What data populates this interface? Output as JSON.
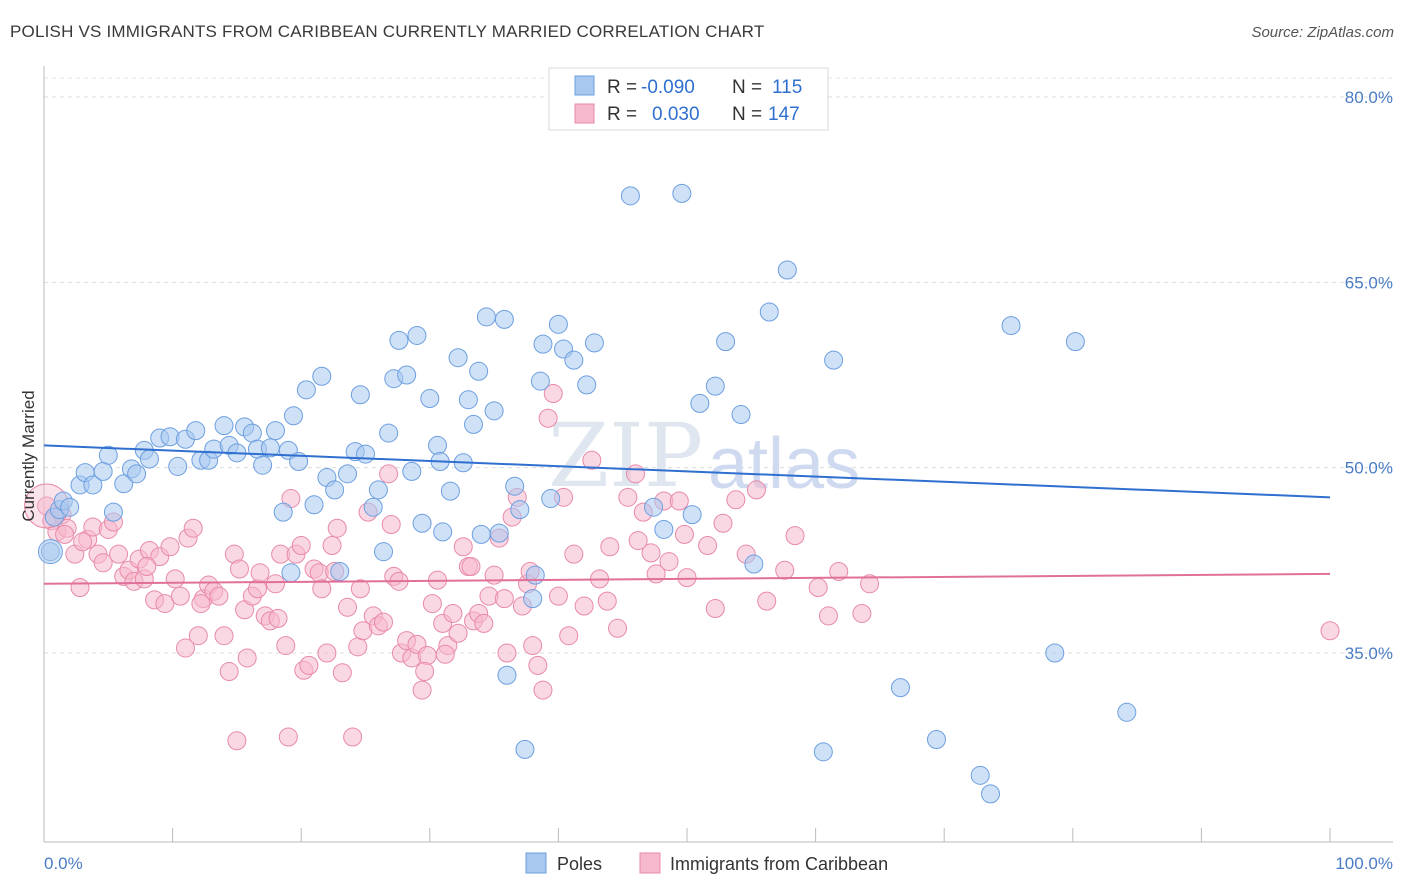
{
  "header": {
    "title": "POLISH VS IMMIGRANTS FROM CARIBBEAN CURRENTLY MARRIED CORRELATION CHART",
    "source": "Source: ZipAtlas.com"
  },
  "watermark": {
    "zip": "ZIP",
    "atlas": "atlas"
  },
  "legend": {
    "rows": [
      {
        "r_label": "R =",
        "r_value": "-0.090",
        "n_label": "N =",
        "n_value": "115",
        "color": "#a8c8f0"
      },
      {
        "r_label": "R =",
        "r_value": "0.030",
        "n_label": "N =",
        "n_value": "147",
        "color": "#f5b8cc"
      }
    ]
  },
  "bottom_legend": {
    "series1": "Poles",
    "series2": "Immigrants from Caribbean"
  },
  "chart_data": {
    "type": "scatter",
    "title": "POLISH VS IMMIGRANTS FROM CARIBBEAN CURRENTLY MARRIED CORRELATION CHART",
    "xlabel": "",
    "ylabel": "Currently Married",
    "xlim": [
      0,
      100
    ],
    "ylim": [
      20,
      83
    ],
    "x_tick_labels": [
      "0.0%",
      "100.0%"
    ],
    "y_ticks": [
      35,
      50,
      65,
      80
    ],
    "y_tick_labels": [
      "35.0%",
      "50.0%",
      "65.0%",
      "80.0%"
    ],
    "grid": true,
    "legend_position": "top-center",
    "series": [
      {
        "name": "Poles",
        "color": "#a8c8f0",
        "stroke": "#6d9fe0",
        "trend": {
          "x": [
            0,
            100
          ],
          "y": [
            51.8,
            47.6
          ],
          "color": "#2f6fd0"
        },
        "points": [
          [
            0.5,
            43.2
          ],
          [
            0.8,
            46.0
          ],
          [
            1.2,
            46.6
          ],
          [
            1.5,
            47.3
          ],
          [
            2.0,
            46.8
          ],
          [
            2.8,
            48.6
          ],
          [
            3.2,
            49.6
          ],
          [
            3.8,
            48.6
          ],
          [
            4.6,
            49.7
          ],
          [
            5.0,
            51.0
          ],
          [
            5.4,
            46.4
          ],
          [
            6.2,
            48.7
          ],
          [
            6.8,
            49.9
          ],
          [
            7.2,
            49.5
          ],
          [
            7.8,
            51.4
          ],
          [
            8.2,
            50.7
          ],
          [
            9.0,
            52.4
          ],
          [
            9.8,
            52.5
          ],
          [
            10.4,
            50.1
          ],
          [
            11.0,
            52.3
          ],
          [
            11.8,
            53.0
          ],
          [
            12.2,
            50.6
          ],
          [
            12.8,
            50.6
          ],
          [
            13.2,
            51.5
          ],
          [
            14.0,
            53.4
          ],
          [
            14.4,
            51.8
          ],
          [
            15.0,
            51.2
          ],
          [
            15.6,
            53.3
          ],
          [
            16.2,
            52.8
          ],
          [
            16.6,
            51.5
          ],
          [
            17.0,
            50.2
          ],
          [
            17.6,
            51.6
          ],
          [
            18.0,
            53.0
          ],
          [
            18.6,
            46.4
          ],
          [
            19.0,
            51.4
          ],
          [
            19.2,
            41.5
          ],
          [
            19.4,
            54.2
          ],
          [
            19.8,
            50.5
          ],
          [
            20.4,
            56.3
          ],
          [
            21.0,
            47.0
          ],
          [
            21.6,
            57.4
          ],
          [
            22.0,
            49.2
          ],
          [
            22.6,
            48.2
          ],
          [
            23.0,
            41.6
          ],
          [
            23.6,
            49.5
          ],
          [
            24.2,
            51.3
          ],
          [
            24.6,
            55.9
          ],
          [
            25.0,
            51.1
          ],
          [
            25.6,
            46.8
          ],
          [
            26.0,
            48.2
          ],
          [
            26.4,
            43.2
          ],
          [
            26.8,
            52.8
          ],
          [
            27.2,
            57.2
          ],
          [
            27.6,
            60.3
          ],
          [
            28.2,
            57.5
          ],
          [
            28.6,
            49.7
          ],
          [
            29.0,
            60.7
          ],
          [
            29.4,
            45.5
          ],
          [
            30.0,
            55.6
          ],
          [
            30.6,
            51.8
          ],
          [
            30.8,
            50.5
          ],
          [
            31.0,
            44.8
          ],
          [
            31.6,
            48.1
          ],
          [
            32.2,
            58.9
          ],
          [
            32.6,
            50.4
          ],
          [
            33.0,
            55.5
          ],
          [
            33.4,
            53.5
          ],
          [
            33.8,
            57.8
          ],
          [
            34.0,
            44.6
          ],
          [
            34.4,
            62.2
          ],
          [
            35.0,
            54.6
          ],
          [
            35.4,
            44.7
          ],
          [
            35.8,
            62.0
          ],
          [
            36.0,
            33.2
          ],
          [
            36.6,
            48.5
          ],
          [
            37.0,
            46.6
          ],
          [
            37.4,
            27.2
          ],
          [
            38.0,
            39.4
          ],
          [
            38.2,
            41.3
          ],
          [
            38.6,
            57.0
          ],
          [
            38.8,
            60.0
          ],
          [
            39.4,
            47.5
          ],
          [
            40.0,
            61.6
          ],
          [
            40.4,
            59.6
          ],
          [
            41.2,
            58.7
          ],
          [
            42.2,
            56.7
          ],
          [
            42.8,
            60.1
          ],
          [
            45.6,
            72.0
          ],
          [
            47.4,
            46.8
          ],
          [
            48.2,
            45.0
          ],
          [
            49.6,
            72.2
          ],
          [
            50.4,
            46.2
          ],
          [
            51.0,
            55.2
          ],
          [
            52.2,
            56.6
          ],
          [
            53.0,
            60.2
          ],
          [
            54.2,
            54.3
          ],
          [
            55.2,
            42.2
          ],
          [
            56.4,
            62.6
          ],
          [
            57.8,
            66.0
          ],
          [
            60.6,
            27.0
          ],
          [
            61.4,
            58.7
          ],
          [
            66.6,
            32.2
          ],
          [
            69.4,
            28.0
          ],
          [
            72.8,
            25.1
          ],
          [
            73.6,
            23.6
          ],
          [
            75.2,
            61.5
          ],
          [
            78.6,
            35.0
          ],
          [
            80.2,
            60.2
          ],
          [
            84.2,
            30.2
          ],
          [
            43.5,
            81.0
          ]
        ]
      },
      {
        "name": "Immigrants from Caribbean",
        "color": "#f5b8cc",
        "stroke": "#e88aa8",
        "trend": {
          "x": [
            0,
            100
          ],
          "y": [
            40.6,
            41.4
          ],
          "color": "#e0709a"
        },
        "points": [
          [
            0.2,
            46.9
          ],
          [
            0.6,
            45.7
          ],
          [
            1.0,
            44.8
          ],
          [
            1.4,
            46.2
          ],
          [
            1.8,
            45.1
          ],
          [
            2.4,
            43.0
          ],
          [
            2.8,
            40.3
          ],
          [
            3.4,
            44.2
          ],
          [
            3.8,
            45.2
          ],
          [
            4.2,
            43.0
          ],
          [
            4.6,
            42.3
          ],
          [
            5.0,
            45.0
          ],
          [
            5.4,
            45.6
          ],
          [
            5.8,
            43.0
          ],
          [
            6.2,
            41.2
          ],
          [
            6.6,
            41.7
          ],
          [
            7.0,
            40.8
          ],
          [
            7.4,
            42.6
          ],
          [
            7.8,
            41.0
          ],
          [
            8.2,
            43.3
          ],
          [
            8.6,
            39.3
          ],
          [
            9.0,
            42.8
          ],
          [
            9.4,
            39.0
          ],
          [
            9.8,
            43.6
          ],
          [
            10.2,
            41.0
          ],
          [
            10.6,
            39.6
          ],
          [
            11.0,
            35.4
          ],
          [
            11.2,
            44.3
          ],
          [
            11.6,
            45.1
          ],
          [
            12.0,
            36.4
          ],
          [
            12.4,
            39.4
          ],
          [
            12.8,
            40.5
          ],
          [
            13.2,
            40.0
          ],
          [
            13.6,
            39.6
          ],
          [
            14.0,
            36.4
          ],
          [
            14.4,
            33.5
          ],
          [
            14.8,
            43.0
          ],
          [
            15.0,
            27.9
          ],
          [
            15.6,
            38.5
          ],
          [
            15.8,
            34.6
          ],
          [
            16.2,
            39.6
          ],
          [
            16.6,
            40.2
          ],
          [
            16.8,
            41.5
          ],
          [
            17.2,
            38.0
          ],
          [
            17.6,
            37.6
          ],
          [
            18.0,
            40.6
          ],
          [
            18.4,
            43.0
          ],
          [
            18.8,
            35.6
          ],
          [
            19.0,
            28.2
          ],
          [
            19.2,
            47.5
          ],
          [
            19.6,
            43.0
          ],
          [
            20.0,
            43.7
          ],
          [
            20.2,
            33.6
          ],
          [
            20.6,
            34.0
          ],
          [
            21.0,
            41.8
          ],
          [
            21.4,
            41.5
          ],
          [
            21.6,
            40.2
          ],
          [
            22.0,
            35.0
          ],
          [
            22.4,
            43.7
          ],
          [
            22.8,
            45.1
          ],
          [
            23.2,
            33.4
          ],
          [
            23.6,
            38.7
          ],
          [
            24.0,
            28.2
          ],
          [
            24.4,
            35.5
          ],
          [
            24.8,
            36.8
          ],
          [
            25.2,
            46.4
          ],
          [
            25.6,
            38.0
          ],
          [
            26.0,
            37.2
          ],
          [
            26.4,
            37.5
          ],
          [
            26.8,
            49.5
          ],
          [
            27.2,
            41.2
          ],
          [
            27.6,
            40.8
          ],
          [
            27.8,
            35.0
          ],
          [
            28.2,
            36.0
          ],
          [
            28.6,
            34.6
          ],
          [
            29.0,
            35.7
          ],
          [
            29.4,
            32.0
          ],
          [
            29.8,
            34.8
          ],
          [
            30.2,
            39.0
          ],
          [
            30.6,
            40.9
          ],
          [
            31.0,
            37.4
          ],
          [
            31.4,
            35.6
          ],
          [
            31.8,
            38.2
          ],
          [
            32.2,
            36.6
          ],
          [
            32.6,
            43.6
          ],
          [
            33.0,
            42.0
          ],
          [
            33.4,
            37.6
          ],
          [
            33.8,
            38.2
          ],
          [
            34.2,
            37.4
          ],
          [
            34.6,
            39.6
          ],
          [
            35.0,
            41.3
          ],
          [
            35.4,
            44.3
          ],
          [
            36.0,
            35.0
          ],
          [
            36.4,
            46.0
          ],
          [
            36.8,
            47.6
          ],
          [
            37.2,
            38.8
          ],
          [
            37.6,
            40.6
          ],
          [
            38.0,
            35.6
          ],
          [
            38.4,
            34.0
          ],
          [
            38.8,
            32.0
          ],
          [
            39.2,
            54.0
          ],
          [
            39.6,
            56.0
          ],
          [
            40.0,
            39.6
          ],
          [
            40.4,
            47.6
          ],
          [
            41.2,
            43.0
          ],
          [
            42.0,
            38.8
          ],
          [
            42.6,
            50.6
          ],
          [
            43.2,
            41.0
          ],
          [
            44.0,
            43.6
          ],
          [
            44.6,
            37.0
          ],
          [
            45.4,
            47.6
          ],
          [
            46.0,
            49.5
          ],
          [
            46.6,
            46.4
          ],
          [
            47.2,
            43.1
          ],
          [
            47.6,
            41.4
          ],
          [
            48.2,
            47.3
          ],
          [
            48.6,
            42.4
          ],
          [
            49.4,
            47.3
          ],
          [
            50.0,
            41.1
          ],
          [
            51.6,
            43.7
          ],
          [
            52.8,
            45.5
          ],
          [
            53.8,
            47.4
          ],
          [
            54.6,
            43.0
          ],
          [
            55.4,
            48.2
          ],
          [
            57.6,
            41.7
          ],
          [
            60.2,
            40.3
          ],
          [
            61.0,
            38.0
          ],
          [
            63.6,
            38.2
          ],
          [
            100.0,
            36.8
          ],
          [
            1.6,
            44.6
          ],
          [
            3.0,
            44.0
          ],
          [
            8.0,
            42.0
          ],
          [
            12.2,
            39.0
          ],
          [
            15.2,
            41.8
          ],
          [
            18.2,
            37.8
          ],
          [
            22.6,
            41.6
          ],
          [
            24.6,
            40.2
          ],
          [
            27.0,
            45.4
          ],
          [
            29.6,
            33.5
          ],
          [
            31.2,
            34.9
          ],
          [
            33.2,
            42.0
          ],
          [
            35.8,
            39.4
          ],
          [
            37.8,
            41.6
          ],
          [
            40.8,
            36.4
          ],
          [
            43.8,
            39.2
          ],
          [
            46.2,
            44.1
          ],
          [
            49.8,
            44.6
          ],
          [
            52.2,
            38.6
          ],
          [
            56.2,
            39.2
          ],
          [
            58.4,
            44.5
          ],
          [
            61.8,
            41.6
          ],
          [
            64.2,
            40.6
          ]
        ]
      }
    ]
  }
}
